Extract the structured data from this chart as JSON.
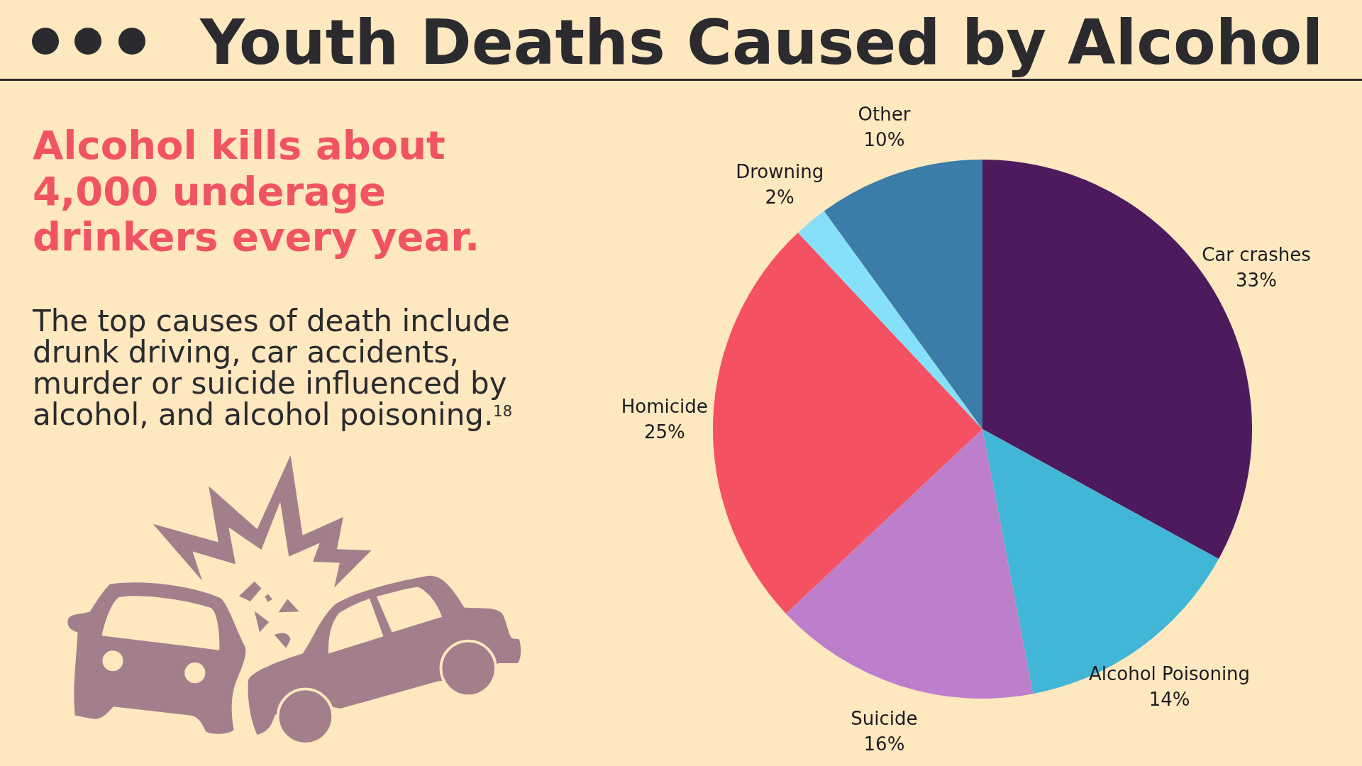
{
  "chart_data": {
    "type": "pie",
    "title": "Youth Deaths Caused by Alcohol",
    "subtitle": "Alcohol kills about 4,000 underage drinkers every year.",
    "annotations": [
      "The top causes of death include drunk driving, car accidents, murder or suicide influenced by alcohol, and alcohol poisoning.$^{18}$"
    ],
    "categories": [
      "Car crashes",
      "Alcohol Poisoning",
      "Suicide",
      "Homicide",
      "Drowning",
      "Other"
    ],
    "values": [
      33,
      14,
      16,
      25,
      2,
      10
    ],
    "colors": [
      "#4e1a5e",
      "#42b6d6",
      "#bd7fcc",
      "#f45163",
      "#87e0fa",
      "#3b7ca8"
    ],
    "value_labels": [
      "33%",
      "14%",
      "16%",
      "25%",
      "2%",
      "10%"
    ]
  }
}
